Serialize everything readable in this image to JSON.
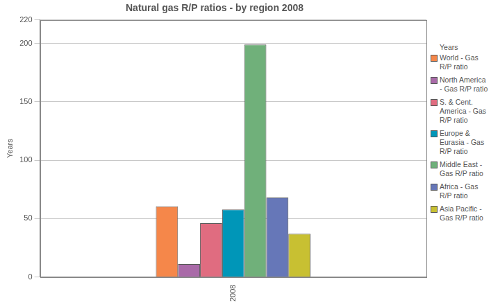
{
  "chart_data": {
    "type": "bar",
    "title": "Natural gas R/P ratios - by region 2008",
    "y_label": "Years",
    "legend_title": "Years",
    "legend": "right",
    "categories": [
      "2008"
    ],
    "series": [
      {
        "name": "World - Gas R/P ratio",
        "color": "#f5874a",
        "values": [
          60.4
        ]
      },
      {
        "name": "North America - Gas R/P ratio",
        "color": "#a96aa8",
        "values": [
          11
        ]
      },
      {
        "name": "S. & Cent. America - Gas R/P ratio",
        "color": "#e06c80",
        "values": [
          46
        ]
      },
      {
        "name": "Europe & Eurasia - Gas R/P ratio",
        "color": "#0096b8",
        "values": [
          57.8
        ]
      },
      {
        "name": "Middle East - Gas R/P ratio",
        "color": "#70b07a",
        "values": [
          199
        ]
      },
      {
        "name": "Africa - Gas R/P ratio",
        "color": "#6677b8",
        "values": [
          68
        ]
      },
      {
        "name": "Asia Pacific - Gas R/P ratio",
        "color": "#c8c032",
        "values": [
          37
        ]
      }
    ],
    "ylim": [
      0,
      220
    ],
    "yticks": [
      0,
      50,
      100,
      150,
      200,
      220
    ],
    "grid": true
  }
}
